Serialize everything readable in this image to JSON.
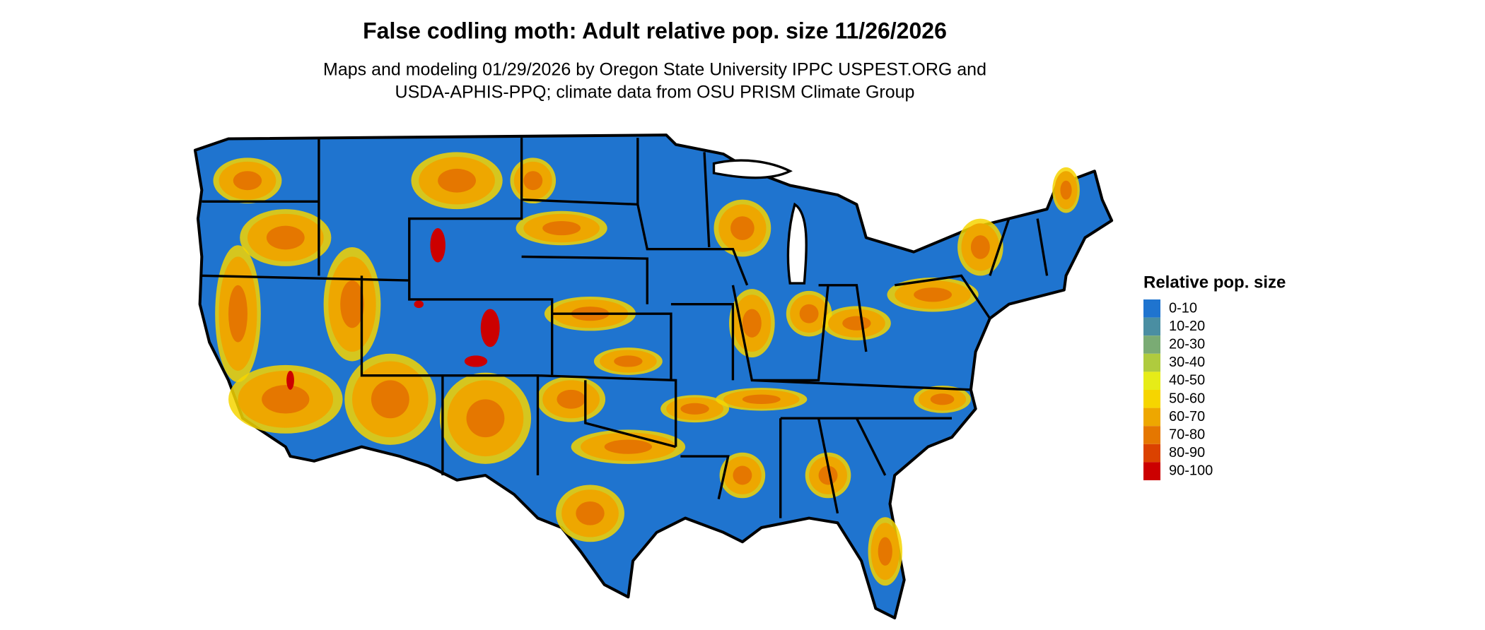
{
  "header": {
    "title": "False codling moth: Adult relative pop. size 11/26/2026",
    "subtitle": [
      "Maps and modeling 01/29/2026 by Oregon State University IPPC USPEST.ORG and",
      "USDA-APHIS-PPQ; climate data from OSU PRISM Climate Group"
    ]
  },
  "legend": {
    "title": "Relative pop. size",
    "items": [
      {
        "label": "0-10",
        "color": "#1f74cf"
      },
      {
        "label": "10-20",
        "color": "#4a8ea2"
      },
      {
        "label": "20-30",
        "color": "#7aab74"
      },
      {
        "label": "30-40",
        "color": "#afcb3e"
      },
      {
        "label": "40-50",
        "color": "#e6ec18"
      },
      {
        "label": "50-60",
        "color": "#f6d500"
      },
      {
        "label": "60-70",
        "color": "#eea700"
      },
      {
        "label": "70-80",
        "color": "#e57700"
      },
      {
        "label": "80-90",
        "color": "#db4200"
      },
      {
        "label": "90-100",
        "color": "#cc0000"
      }
    ]
  }
}
